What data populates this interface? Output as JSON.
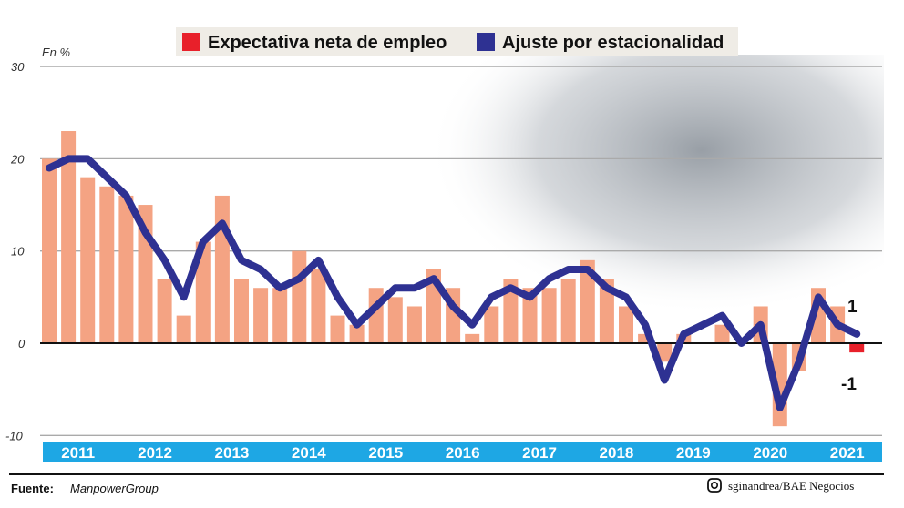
{
  "chart_data": {
    "type": "bar",
    "unit_label": "En %",
    "ylim": [
      -10,
      30
    ],
    "yticks": [
      30,
      20,
      10,
      0,
      -10
    ],
    "grid": true,
    "legend_placement": "top",
    "categories_years": [
      "2011",
      "2012",
      "2013",
      "2014",
      "2015",
      "2016",
      "2017",
      "2018",
      "2019",
      "2020",
      "2021"
    ],
    "quarters_per_year": 4,
    "series": [
      {
        "name": "Expectativa neta de empleo",
        "kind": "bar",
        "color": "#f4a383",
        "highlight_color": "#e8202a",
        "values": [
          20,
          23,
          18,
          17,
          16,
          15,
          7,
          3,
          11,
          16,
          7,
          6,
          6,
          10,
          8,
          3,
          2,
          6,
          5,
          4,
          8,
          6,
          1,
          4,
          7,
          6,
          6,
          7,
          9,
          7,
          4,
          1,
          -2,
          1,
          0,
          2,
          0,
          4,
          -9,
          -3,
          6,
          4,
          -1
        ]
      },
      {
        "name": "Ajuste por estacionalidad",
        "kind": "line",
        "color": "#2e3192",
        "values": [
          19,
          20,
          20,
          18,
          16,
          12,
          9,
          5,
          11,
          13,
          9,
          8,
          6,
          7,
          9,
          5,
          2,
          4,
          6,
          6,
          7,
          4,
          2,
          5,
          6,
          5,
          7,
          8,
          8,
          6,
          5,
          2,
          -4,
          1,
          2,
          3,
          0,
          2,
          -7,
          -2,
          5,
          2,
          1
        ]
      }
    ],
    "annotations": {
      "last_adjusted": "1",
      "last_net": "-1"
    }
  },
  "legend": {
    "net_label": "Expectativa neta de empleo",
    "adjusted_label": "Ajuste por estacionalidad"
  },
  "footer": {
    "source_label": "Fuente:",
    "source_value": "ManpowerGroup",
    "credit_icon": "instagram-icon",
    "credit": "sginandrea/BAE Negocios"
  },
  "colors": {
    "year_band": "#1ea7e4",
    "bars": "#f4a383",
    "line": "#2e3192",
    "negative_highlight": "#e8202a"
  }
}
